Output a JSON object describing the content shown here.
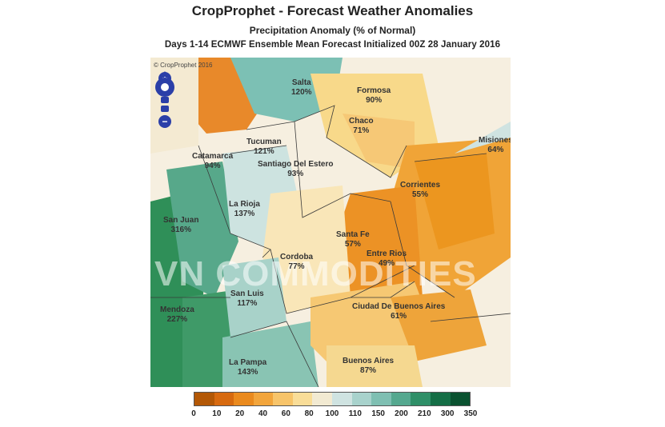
{
  "header": {
    "title": "CropProphet - Forecast Weather Anomalies",
    "subtitle": "Precipitation Anomaly (% of Normal)",
    "description": "Days 1-14 ECMWF Ensemble Mean Forecast Initialized 00Z 28 January 2016"
  },
  "map": {
    "copyright": "© CropProphet 2016",
    "watermark": "VN COMMODITIES",
    "regions": [
      {
        "name": "Salta",
        "value": "120%"
      },
      {
        "name": "Formosa",
        "value": "90%"
      },
      {
        "name": "Chaco",
        "value": "71%"
      },
      {
        "name": "Misiones",
        "value": "64%"
      },
      {
        "name": "Tucuman",
        "value": "121%"
      },
      {
        "name": "Catamarca",
        "value": "94%"
      },
      {
        "name": "Santiago Del Estero",
        "value": "93%"
      },
      {
        "name": "Corrientes",
        "value": "55%"
      },
      {
        "name": "La Rioja",
        "value": "137%"
      },
      {
        "name": "San Juan",
        "value": "316%"
      },
      {
        "name": "Santa Fe",
        "value": "57%"
      },
      {
        "name": "Entre Rios",
        "value": "49%"
      },
      {
        "name": "Cordoba",
        "value": "77%"
      },
      {
        "name": "San Luis",
        "value": "117%"
      },
      {
        "name": "Ciudad De Buenos Aires",
        "value": "61%"
      },
      {
        "name": "Mendoza",
        "value": "227%"
      },
      {
        "name": "La Pampa",
        "value": "143%"
      },
      {
        "name": "Buenos Aires",
        "value": "87%"
      }
    ]
  },
  "navigation": {
    "zoom_in": "+",
    "zoom_out": "−"
  },
  "legend": {
    "colors": [
      "#b35806",
      "#d76a10",
      "#ea8a1e",
      "#f2a53c",
      "#f7c46a",
      "#f9dd98",
      "#f2ead2",
      "#cfe3e1",
      "#a8d2cc",
      "#7fbfb2",
      "#55a88f",
      "#2f8f68",
      "#156e46",
      "#0a5230"
    ],
    "ticks": [
      "0",
      "10",
      "20",
      "40",
      "60",
      "80",
      "100",
      "110",
      "150",
      "200",
      "210",
      "300",
      "350"
    ]
  }
}
